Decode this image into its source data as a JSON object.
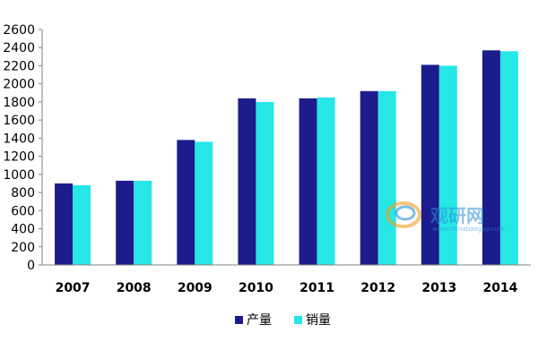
{
  "chart_data": {
    "type": "bar",
    "categories": [
      "2007",
      "2008",
      "2009",
      "2010",
      "2011",
      "2012",
      "2013",
      "2014"
    ],
    "series": [
      {
        "name": "产量",
        "color": "#1c1c8c",
        "values": [
          900,
          930,
          1380,
          1840,
          1840,
          1920,
          2210,
          2370
        ]
      },
      {
        "name": "销量",
        "color": "#27e6e6",
        "values": [
          880,
          930,
          1360,
          1800,
          1850,
          1920,
          2200,
          2360
        ]
      }
    ],
    "yticks": [
      0,
      200,
      400,
      600,
      800,
      1000,
      1200,
      1400,
      1600,
      1800,
      2000,
      2200,
      2400,
      2600
    ],
    "ylim": [
      0,
      2600
    ],
    "grid": false,
    "legend_position": "bottom-center"
  },
  "watermark": {
    "text": "观研网",
    "url": "www.chinabaogao.com"
  }
}
